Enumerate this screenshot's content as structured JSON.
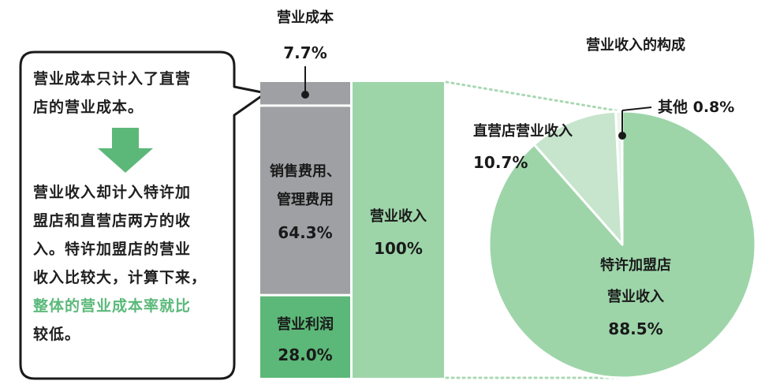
{
  "callout": {
    "line1": "营业成本只计入了直营",
    "line2": "店的营业成本。",
    "body": [
      "营业收入却计入特许加",
      "盟店和直营店两方的收",
      "入。特许加盟店的营业",
      "收入比较大，计算下来，"
    ],
    "highlight": "整体的营业成本率就比",
    "tail": "较低。"
  },
  "chart_data": [
    {
      "type": "bar",
      "stacked": true,
      "categories": [
        "营业成本",
        "营业收入"
      ],
      "series": [
        {
          "name": "营业利润",
          "label": "营业利润",
          "value_label": "28.0%",
          "values": [
            28.0,
            null
          ],
          "color": "#5cb878"
        },
        {
          "name": "销售费用、管理费用",
          "label_lines": [
            "销售费用、",
            "管理费用"
          ],
          "value_label": "64.3%",
          "values": [
            64.3,
            null
          ],
          "color": "#9fa0a3"
        },
        {
          "name": "营业成本",
          "label": "营业成本",
          "value_label": "7.7%",
          "values": [
            7.7,
            null
          ],
          "color": "#9fa0a3"
        },
        {
          "name": "营业收入",
          "label": "营业收入",
          "value_label": "100%",
          "values": [
            null,
            100
          ],
          "color": "#9dd5a9"
        }
      ],
      "ylim": [
        0,
        100
      ]
    },
    {
      "type": "pie",
      "title": "营业收入的构成",
      "slices": [
        {
          "name": "特许加盟店营业收入",
          "label_lines": [
            "特许加盟店",
            "营业收入"
          ],
          "value": 88.5,
          "value_label": "88.5%",
          "color": "#9dd5a9"
        },
        {
          "name": "直营店营业收入",
          "label": "直营店营业收入",
          "value": 10.7,
          "value_label": "10.7%",
          "color": "#c6e5cc"
        },
        {
          "name": "其他",
          "label": "其他 0.8%",
          "value": 0.8,
          "color": "#eaf5ec"
        }
      ]
    }
  ]
}
